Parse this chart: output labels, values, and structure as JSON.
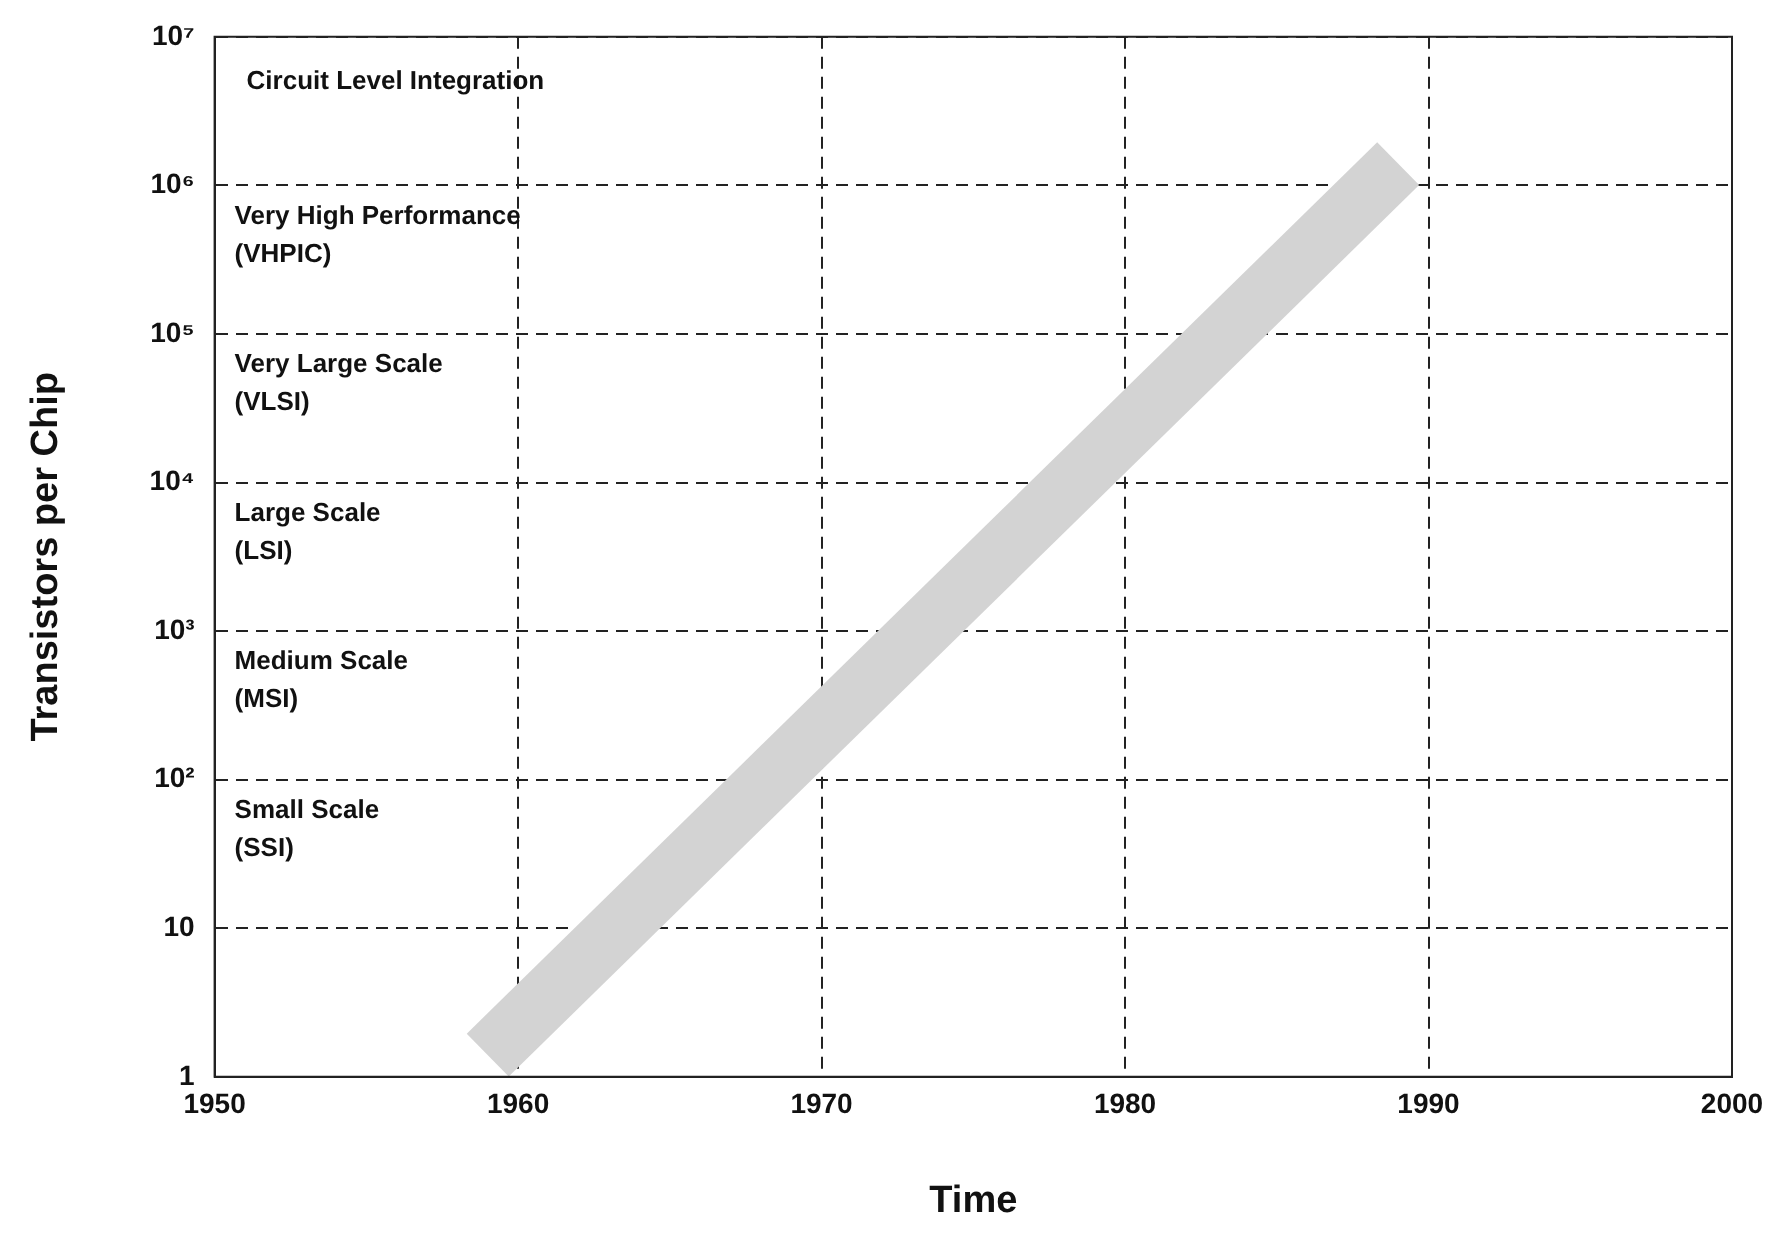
{
  "chart_data": {
    "type": "line",
    "xlabel": "Time",
    "ylabel": "Transistors per Chip",
    "log": "y",
    "grid": true,
    "legend": false,
    "xlim": [
      1950,
      2000
    ],
    "xticks": [
      1950,
      1960,
      1970,
      1980,
      1990,
      2000
    ],
    "ylim": [
      1,
      10000000
    ],
    "yticks": [
      1,
      10,
      {
        "value": 100,
        "label": "10²"
      },
      {
        "value": 1000,
        "label": "10³"
      },
      {
        "value": 10000,
        "label": "10⁴"
      },
      {
        "value": 100000,
        "label": "10⁵"
      },
      {
        "value": 1000000,
        "label": "10⁶"
      },
      {
        "value": 10000000,
        "label": "10⁷"
      }
    ],
    "series": [
      {
        "color": "#d3d3d3",
        "x": [
          1959,
          1989
        ],
        "values": [
          1.4,
          1400000
        ]
      }
    ],
    "annotations": [
      "Circuit Level Integration",
      "Very High Performance\n(VHPIC)",
      "Very Large Scale\n(VLSI)",
      "Large Scale\n(LSI)",
      "Medium Scale\n(MSI)",
      "Small Scale\n(SSI)"
    ]
  }
}
